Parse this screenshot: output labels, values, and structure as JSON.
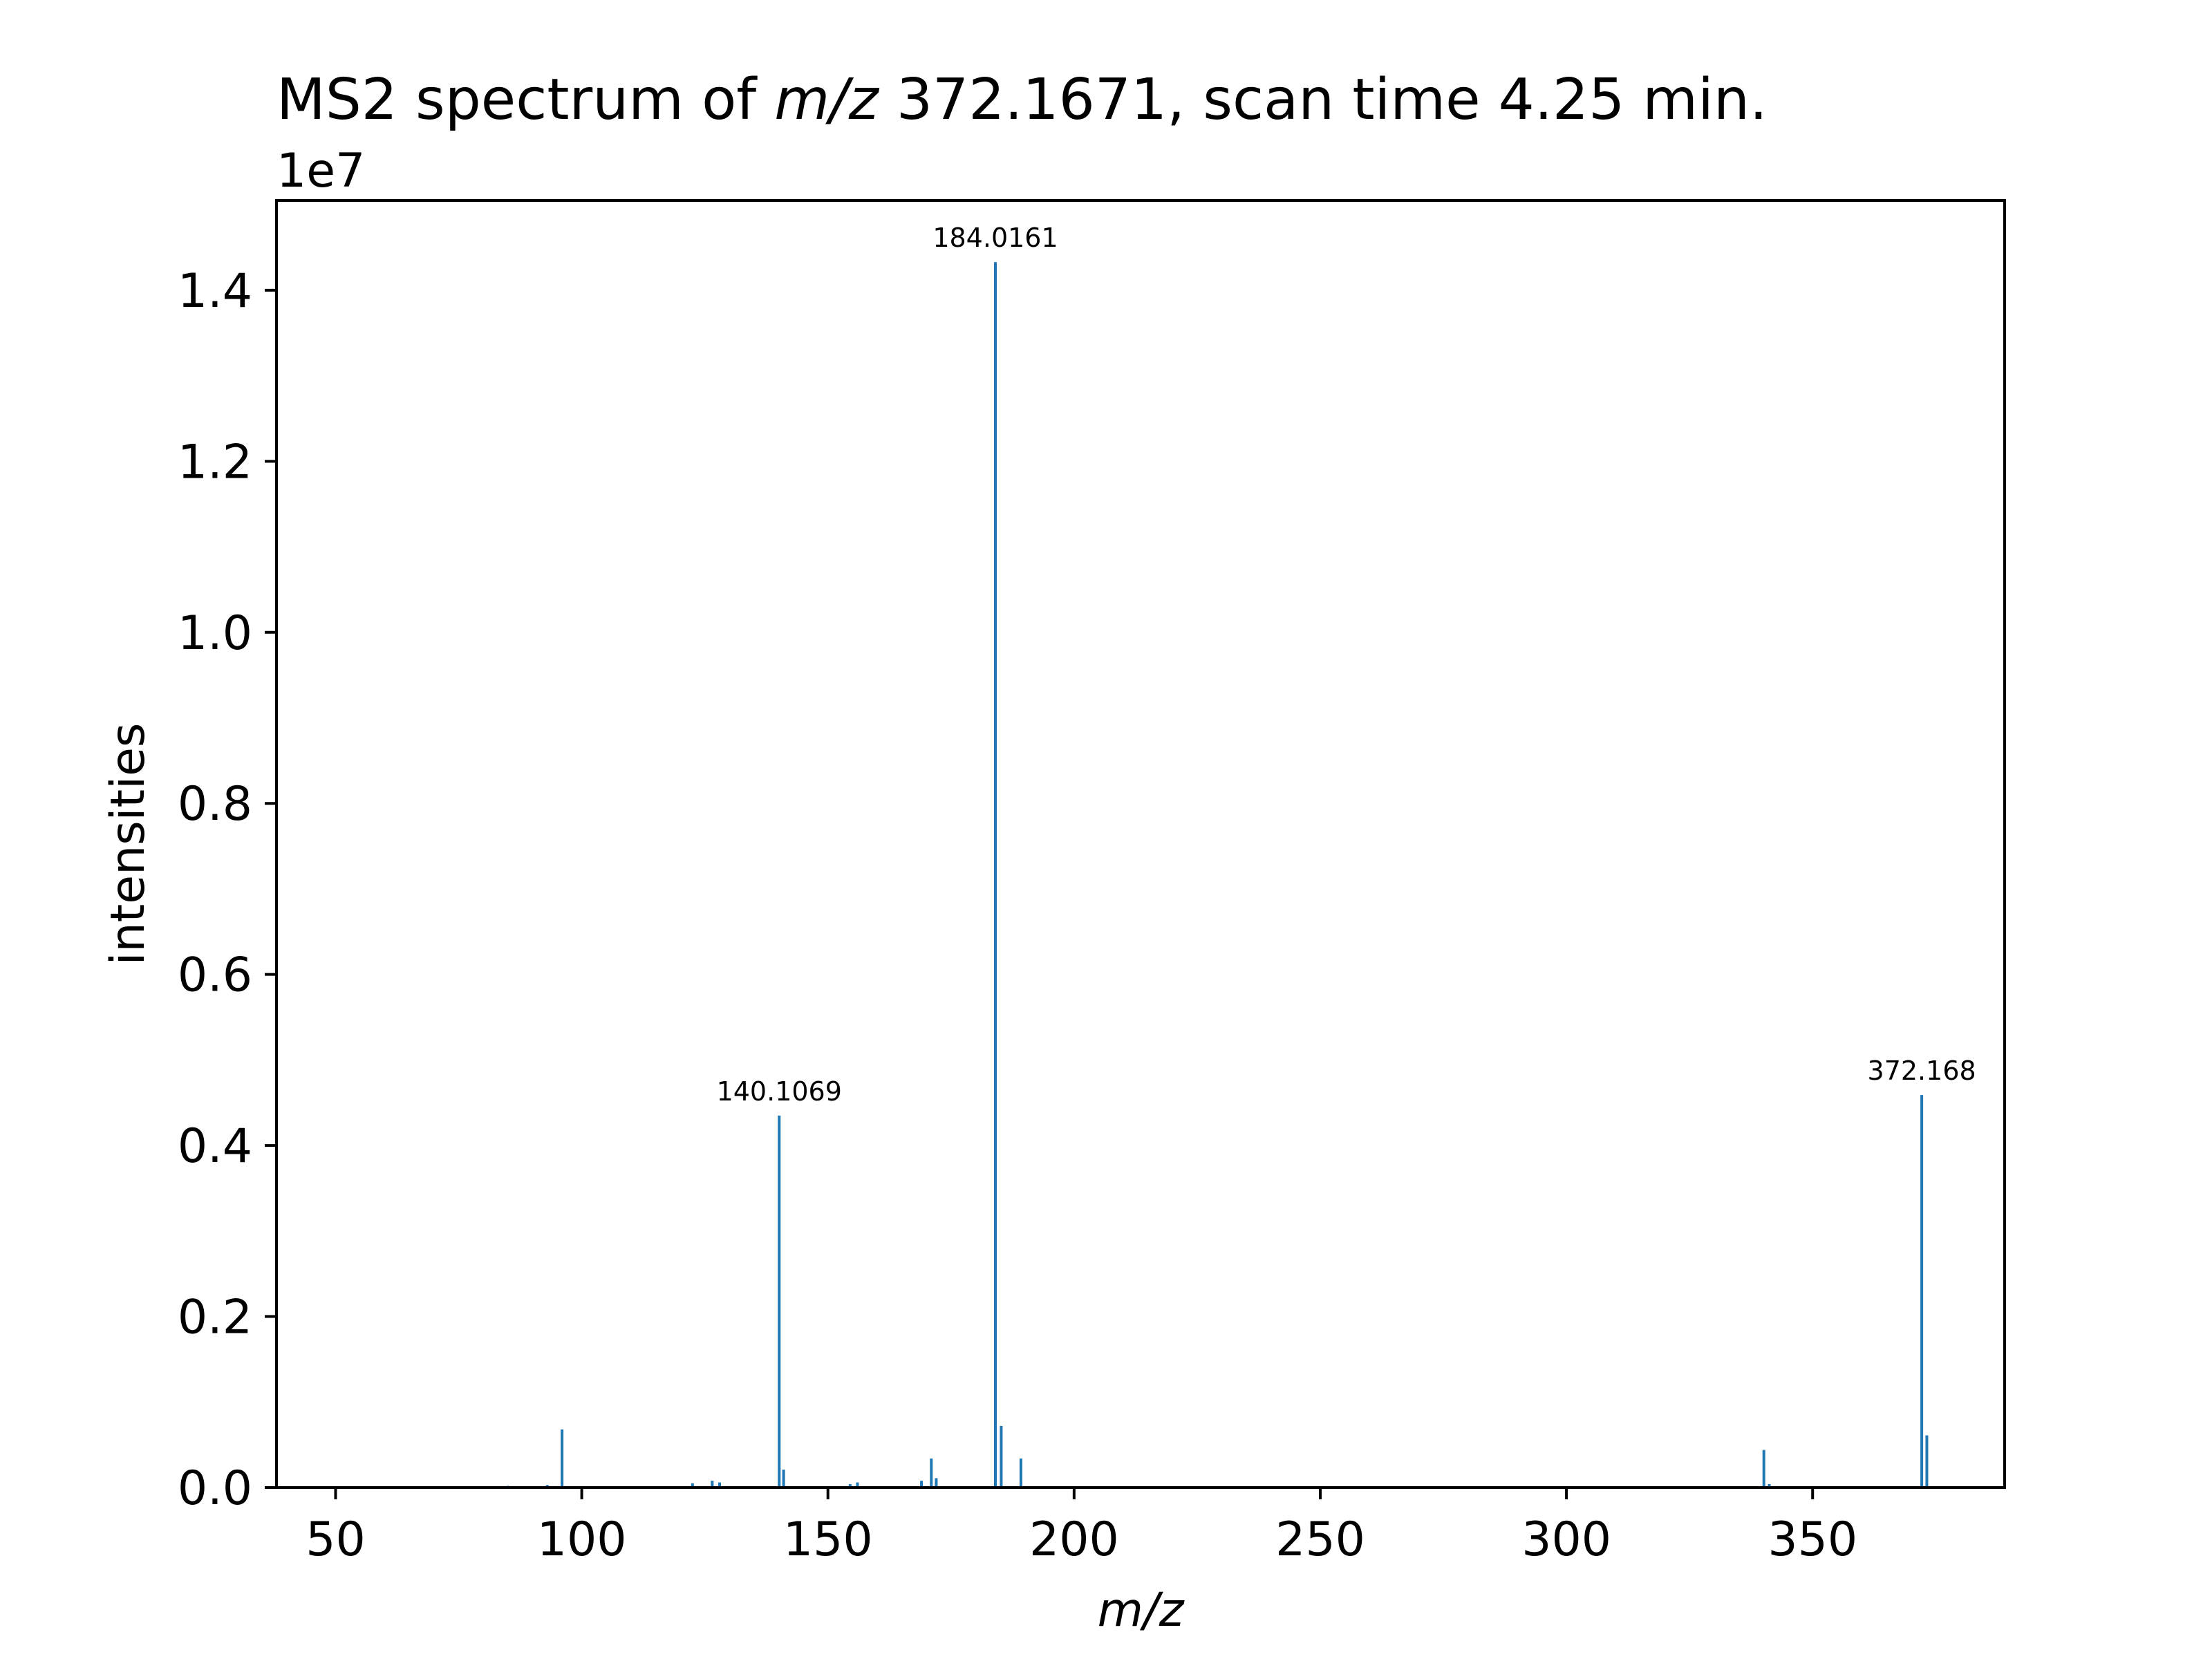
{
  "chart_data": {
    "type": "bar",
    "title": {
      "prefix": "MS2 spectrum of ",
      "italic": "m/z",
      "suffix": " 372.1671, scan time 4.25 min."
    },
    "xlabel": "m/z",
    "ylabel": "intensities",
    "y_offset_label": "1e7",
    "xlim": [
      38,
      389
    ],
    "ylim": [
      0,
      1.505
    ],
    "y_scale": 10000000,
    "x_ticks": [
      50,
      100,
      150,
      200,
      250,
      300,
      350
    ],
    "y_ticks": [
      0.0,
      0.2,
      0.4,
      0.6,
      0.8,
      1.0,
      1.2,
      1.4
    ],
    "y_tick_labels": [
      "0.0",
      "0.2",
      "0.4",
      "0.6",
      "0.8",
      "1.0",
      "1.2",
      "1.4"
    ],
    "grid": false,
    "color": "#1f77b4",
    "peaks": [
      {
        "mz": 85.0,
        "intensity": 0.002
      },
      {
        "mz": 93.0,
        "intensity": 0.003
      },
      {
        "mz": 96.0,
        "intensity": 0.068
      },
      {
        "mz": 122.5,
        "intensity": 0.005
      },
      {
        "mz": 126.5,
        "intensity": 0.008
      },
      {
        "mz": 128.0,
        "intensity": 0.006
      },
      {
        "mz": 140.1069,
        "intensity": 0.435
      },
      {
        "mz": 141.0,
        "intensity": 0.021
      },
      {
        "mz": 154.5,
        "intensity": 0.004
      },
      {
        "mz": 156.0,
        "intensity": 0.006
      },
      {
        "mz": 169.0,
        "intensity": 0.008
      },
      {
        "mz": 171.0,
        "intensity": 0.034
      },
      {
        "mz": 172.0,
        "intensity": 0.011
      },
      {
        "mz": 184.0161,
        "intensity": 1.433
      },
      {
        "mz": 185.2,
        "intensity": 0.072
      },
      {
        "mz": 189.2,
        "intensity": 0.034
      },
      {
        "mz": 340.1,
        "intensity": 0.044
      },
      {
        "mz": 341.2,
        "intensity": 0.004
      },
      {
        "mz": 372.168,
        "intensity": 0.459
      },
      {
        "mz": 373.2,
        "intensity": 0.061
      }
    ],
    "annotations": [
      {
        "mz": 140.1069,
        "intensity": 0.435,
        "label": "140.1069"
      },
      {
        "mz": 184.0161,
        "intensity": 1.433,
        "label": "184.0161"
      },
      {
        "mz": 372.168,
        "intensity": 0.459,
        "label": "372.168"
      }
    ]
  }
}
